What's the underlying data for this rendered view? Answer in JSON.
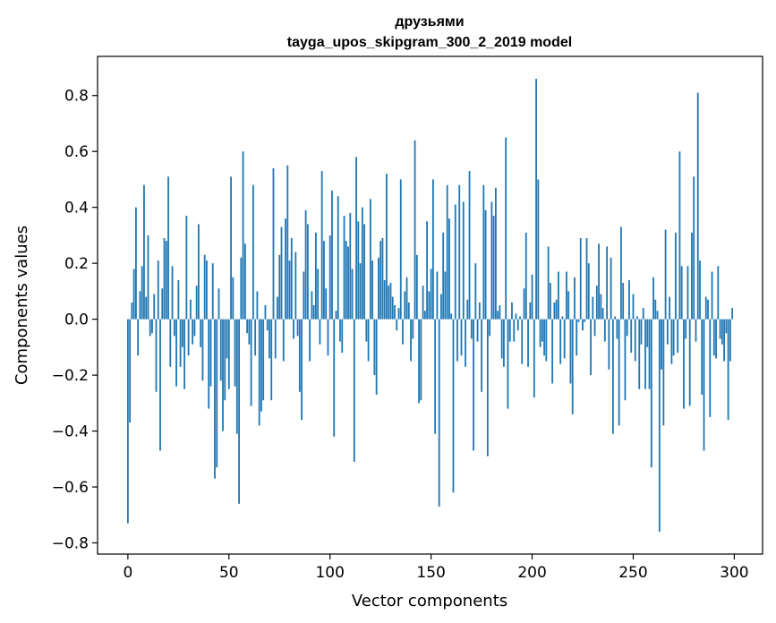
{
  "chart_data": {
    "type": "bar",
    "title": "друзьями",
    "subtitle": "tayga_upos_skipgram_300_2_2019 model",
    "xlabel": "Vector components",
    "ylabel": "Components values",
    "xlim": [
      -15,
      314
    ],
    "ylim": [
      -0.84,
      0.94
    ],
    "xticks": [
      0,
      50,
      100,
      150,
      200,
      250,
      300
    ],
    "yticks": [
      -0.8,
      -0.6,
      -0.4,
      -0.2,
      0.0,
      0.2,
      0.4,
      0.6,
      0.8
    ],
    "xtick_labels": [
      "0",
      "50",
      "100",
      "150",
      "200",
      "250",
      "300"
    ],
    "ytick_labels": [
      "−0.8",
      "−0.6",
      "−0.4",
      "−0.2",
      "0.0",
      "0.2",
      "0.4",
      "0.6",
      "0.8"
    ],
    "grid": false,
    "bar_color": "#1f77b4",
    "x": [
      0,
      1,
      2,
      3,
      4,
      5,
      6,
      7,
      8,
      9,
      10,
      11,
      12,
      13,
      14,
      15,
      16,
      17,
      18,
      19,
      20,
      21,
      22,
      23,
      24,
      25,
      26,
      27,
      28,
      29,
      30,
      31,
      32,
      33,
      34,
      35,
      36,
      37,
      38,
      39,
      40,
      41,
      42,
      43,
      44,
      45,
      46,
      47,
      48,
      49,
      50,
      51,
      52,
      53,
      54,
      55,
      56,
      57,
      58,
      59,
      60,
      61,
      62,
      63,
      64,
      65,
      66,
      67,
      68,
      69,
      70,
      71,
      72,
      73,
      74,
      75,
      76,
      77,
      78,
      79,
      80,
      81,
      82,
      83,
      84,
      85,
      86,
      87,
      88,
      89,
      90,
      91,
      92,
      93,
      94,
      95,
      96,
      97,
      98,
      99,
      100,
      101,
      102,
      103,
      104,
      105,
      106,
      107,
      108,
      109,
      110,
      111,
      112,
      113,
      114,
      115,
      116,
      117,
      118,
      119,
      120,
      121,
      122,
      123,
      124,
      125,
      126,
      127,
      128,
      129,
      130,
      131,
      132,
      133,
      134,
      135,
      136,
      137,
      138,
      139,
      140,
      141,
      142,
      143,
      144,
      145,
      146,
      147,
      148,
      149,
      150,
      151,
      152,
      153,
      154,
      155,
      156,
      157,
      158,
      159,
      160,
      161,
      162,
      163,
      164,
      165,
      166,
      167,
      168,
      169,
      170,
      171,
      172,
      173,
      174,
      175,
      176,
      177,
      178,
      179,
      180,
      181,
      182,
      183,
      184,
      185,
      186,
      187,
      188,
      189,
      190,
      191,
      192,
      193,
      194,
      195,
      196,
      197,
      198,
      199,
      200,
      201,
      202,
      203,
      204,
      205,
      206,
      207,
      208,
      209,
      210,
      211,
      212,
      213,
      214,
      215,
      216,
      217,
      218,
      219,
      220,
      221,
      222,
      223,
      224,
      225,
      226,
      227,
      228,
      229,
      230,
      231,
      232,
      233,
      234,
      235,
      236,
      237,
      238,
      239,
      240,
      241,
      242,
      243,
      244,
      245,
      246,
      247,
      248,
      249,
      250,
      251,
      252,
      253,
      254,
      255,
      256,
      257,
      258,
      259,
      260,
      261,
      262,
      263,
      264,
      265,
      266,
      267,
      268,
      269,
      270,
      271,
      272,
      273,
      274,
      275,
      276,
      277,
      278,
      279,
      280,
      281,
      282,
      283,
      284,
      285,
      286,
      287,
      288,
      289,
      290,
      291,
      292,
      293,
      294,
      295,
      296,
      297,
      298,
      299
    ],
    "values": [
      -0.73,
      -0.37,
      0.06,
      0.18,
      0.4,
      -0.13,
      0.1,
      0.19,
      0.48,
      0.08,
      0.3,
      -0.06,
      -0.05,
      0.09,
      -0.26,
      0.21,
      -0.47,
      0.11,
      0.29,
      0.28,
      0.51,
      -0.17,
      0.19,
      -0.06,
      -0.24,
      0.14,
      -0.17,
      -0.1,
      -0.25,
      0.37,
      -0.13,
      0.07,
      -0.09,
      -0.06,
      0.12,
      0.34,
      -0.1,
      -0.22,
      0.23,
      0.21,
      -0.32,
      -0.24,
      0.2,
      -0.57,
      -0.53,
      0.11,
      -0.22,
      -0.4,
      -0.29,
      -0.14,
      -0.25,
      0.51,
      0.15,
      -0.24,
      -0.41,
      -0.66,
      0.22,
      0.6,
      0.27,
      -0.05,
      -0.09,
      -0.31,
      0.48,
      -0.13,
      0.1,
      -0.38,
      -0.33,
      -0.29,
      0.05,
      -0.04,
      -0.14,
      -0.29,
      0.54,
      -0.14,
      0.08,
      0.23,
      0.33,
      -0.15,
      0.36,
      0.55,
      0.21,
      0.29,
      -0.07,
      0.24,
      -0.06,
      -0.26,
      -0.36,
      0.17,
      0.39,
      0.34,
      -0.15,
      0.1,
      0.05,
      0.31,
      0.18,
      -0.09,
      0.53,
      0.28,
      0.11,
      -0.13,
      0.3,
      0.46,
      -0.42,
      0.03,
      0.44,
      -0.08,
      -0.12,
      0.37,
      0.28,
      0.26,
      0.38,
      0.18,
      -0.51,
      0.58,
      0.35,
      0.2,
      0.4,
      0.34,
      -0.08,
      -0.15,
      0.43,
      0.21,
      -0.2,
      -0.27,
      0.22,
      0.28,
      0.29,
      0.14,
      0.52,
      0.12,
      0.13,
      0.08,
      0.05,
      -0.04,
      0.04,
      0.5,
      -0.09,
      0.1,
      0.15,
      0.06,
      -0.15,
      -0.07,
      0.64,
      0.23,
      -0.3,
      -0.29,
      0.12,
      0.03,
      0.35,
      0.1,
      0.18,
      0.5,
      -0.41,
      0.17,
      -0.67,
      0.09,
      0.31,
      0.17,
      0.48,
      0.36,
      0.02,
      -0.62,
      0.41,
      -0.15,
      0.48,
      -0.13,
      0.42,
      -0.17,
      0.07,
      0.53,
      -0.07,
      -0.47,
      0.2,
      -0.08,
      0.06,
      -0.26,
      0.48,
      0.39,
      -0.49,
      -0.06,
      0.42,
      0.37,
      0.47,
      0.03,
      0.05,
      -0.14,
      -0.17,
      0.65,
      -0.32,
      -0.08,
      0.06,
      -0.08,
      0.02,
      -0.04,
      0.01,
      -0.16,
      0.11,
      0.31,
      -0.17,
      0.06,
      0.16,
      -0.28,
      0.86,
      0.5,
      -0.1,
      -0.08,
      -0.13,
      -0.15,
      0.26,
      0.13,
      -0.23,
      0.06,
      0.07,
      0.17,
      -0.16,
      0.01,
      -0.14,
      0.17,
      0.1,
      -0.23,
      -0.34,
      0.15,
      -0.13,
      -0.01,
      0.29,
      -0.04,
      -0.01,
      0.29,
      0.2,
      -0.2,
      0.08,
      -0.06,
      0.12,
      0.27,
      0.09,
      0.04,
      -0.08,
      0.26,
      -0.18,
      0.22,
      -0.41,
      0.01,
      -0.07,
      -0.38,
      0.33,
      0.13,
      -0.29,
      -0.06,
      0.14,
      -0.12,
      0.09,
      -0.15,
      0.01,
      -0.25,
      -0.09,
      0.04,
      -0.25,
      -0.1,
      -0.25,
      -0.53,
      0.15,
      0.07,
      0.03,
      -0.76,
      -0.18,
      -0.38,
      0.32,
      -0.09,
      0.08,
      -0.16,
      -0.13,
      0.31,
      -0.12,
      0.6,
      0.19,
      -0.32,
      -0.07,
      0.19,
      -0.31,
      0.31,
      0.51,
      -0.08,
      0.81,
      0.21,
      -0.27,
      -0.47,
      0.08,
      0.07,
      -0.35,
      0.17,
      -0.13,
      -0.14,
      0.19,
      -0.07,
      -0.09,
      -0.15,
      -0.05,
      -0.36,
      -0.15,
      0.04
    ]
  }
}
